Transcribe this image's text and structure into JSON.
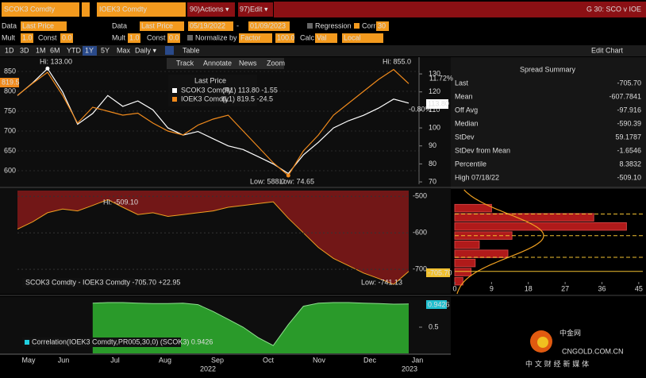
{
  "header": {
    "security1": "SCOK3 Comdty",
    "security2": "IOEK3 Comdty",
    "actions_key": "90)",
    "actions": "Actions ▾",
    "edit_key": "97)",
    "edit": "Edit ▾",
    "title": "G 30: SCO v IOE"
  },
  "settings": {
    "data1": "Data",
    "field1": "Last Price",
    "data2": "Data",
    "field2": "Last Price",
    "start": "05/19/2022",
    "dash": "-",
    "end": "01/09/2023",
    "regression": "Regression",
    "corr": "Corr",
    "corr_window": "30",
    "mult1": "Mult",
    "mult1_val": "1.0",
    "const1": "Const",
    "const1_val": "0.0",
    "mult2": "Mult",
    "mult2_val": "1.0",
    "const2": "Const",
    "const2_val": "0.0",
    "normalize": "Normalize by",
    "normalize_val": "Factor",
    "normalize_num": "100.0",
    "calc": "Calc",
    "calc_val": "Val",
    "local": "Local"
  },
  "toolbar": {
    "periods": [
      "1D",
      "3D",
      "1M",
      "6M",
      "YTD",
      "1Y",
      "5Y",
      "Max"
    ],
    "frequency": "Daily ▾",
    "table": "Table",
    "edit_chart": "Edit Chart",
    "tools": [
      "Track",
      "Annotate",
      "News",
      "Zoom"
    ]
  },
  "summary": {
    "title": "Spread Summary",
    "rows": [
      [
        "Last",
        "-705.70"
      ],
      [
        "Mean",
        "-607.7841"
      ],
      [
        "Off Avg",
        "-97.916"
      ],
      [
        "Median",
        "-590.39"
      ],
      [
        "StDev",
        "59.1787"
      ],
      [
        "StDev from Mean",
        "-1.6546"
      ],
      [
        "Percentile",
        "8.3832"
      ],
      [
        "High 07/18/22",
        "-509.10"
      ]
    ]
  },
  "watermark": {
    "brand": "中金网",
    "site": "CNGOLD.COM.CN",
    "slogan": "中 文 财 经 新 媒 体"
  },
  "chart_data": [
    {
      "type": "line",
      "legend_title": "Last Price",
      "series": [
        {
          "name": "SCOK3 Comdty",
          "legend_detail": "(R1) 113.80 -1.55",
          "color": "#ffffff",
          "axis": "y2",
          "values": [
            118,
            125,
            133,
            120,
            102,
            108,
            118,
            112,
            115,
            110,
            100,
            96,
            98,
            94,
            90,
            88,
            84,
            80,
            74.65,
            85,
            92,
            100,
            104,
            107,
            111,
            116,
            113.8
          ]
        },
        {
          "name": "IOEK3 Comdty",
          "legend_detail": "(L1) 819.5 -24.5",
          "color": "#f08a1c",
          "values": [
            790,
            820,
            848,
            790,
            720,
            760,
            750,
            740,
            745,
            720,
            700,
            690,
            715,
            730,
            740,
            700,
            660,
            620,
            588,
            650,
            690,
            740,
            770,
            800,
            830,
            855,
            819.5
          ]
        }
      ],
      "ylim": [
        566,
        886
      ],
      "yticks": [
        600,
        650,
        700,
        750,
        800,
        850
      ],
      "y2lim": [
        68.7,
        139.3
      ],
      "y2ticks": [
        70,
        80,
        90,
        100,
        110,
        120,
        130
      ],
      "annotations": [
        "Hi: 133.00",
        "Hi: 855.0",
        "Low: 588.0",
        "Low: 74.65"
      ],
      "last_labels": [
        "819.5",
        "113.80"
      ],
      "change_labels": [
        "11.72%",
        "-0.80%"
      ]
    },
    {
      "type": "area",
      "legend": "SCOK3 Comdty - IOEK3 Comdty -705.70 +22.95",
      "color": "#8c1a1a",
      "line_color": "#f0a020",
      "values": [
        -590,
        -570,
        -545,
        -535,
        -540,
        -525,
        -509.1,
        -530,
        -550,
        -545,
        -555,
        -550,
        -545,
        -540,
        -530,
        -525,
        -520,
        -515,
        -560,
        -600,
        -640,
        -670,
        -690,
        -710,
        -725,
        -741.13,
        -705.7
      ],
      "ylim": [
        -767,
        -480
      ],
      "yticks": [
        -500,
        -600,
        -700
      ],
      "annotations": [
        "Hi: -509.10",
        "Low: -741.13"
      ],
      "last_label": "-705.70"
    },
    {
      "type": "histogram",
      "orientation": "horizontal",
      "color": "#b01a1a",
      "bins": [
        -520,
        -545,
        -570,
        -595,
        -620,
        -645,
        -670,
        -695,
        -720,
        -745
      ],
      "counts": [
        9,
        34,
        42,
        14,
        6,
        13,
        5,
        4,
        2
      ],
      "ylim": [
        -767,
        -480
      ],
      "xlim": [
        0,
        46
      ],
      "xticks": [
        0,
        9,
        18,
        27,
        36,
        45
      ]
    },
    {
      "type": "area",
      "legend": "Correlation(IOEK3 Comdty,PR005,30,0) (SCOK3) 0.9426",
      "color": "#2a9a2a",
      "values": [
        null,
        null,
        null,
        null,
        null,
        0.96,
        0.97,
        0.97,
        0.96,
        0.95,
        0.95,
        0.96,
        0.93,
        0.8,
        0.65,
        0.5,
        0.3,
        0.15,
        0.55,
        0.9,
        0.96,
        0.97,
        0.97,
        0.96,
        0.95,
        0.94,
        0.9426
      ],
      "ylim": [
        0,
        1.076
      ],
      "yticks": [
        0.5
      ],
      "last_label": "0.9426",
      "xtick_labels": [
        "May",
        "Jun",
        "Jul",
        "Aug",
        "Sep",
        "Oct",
        "Nov",
        "Dec",
        "Jan"
      ],
      "year_labels": [
        "2022",
        "2023"
      ]
    }
  ]
}
